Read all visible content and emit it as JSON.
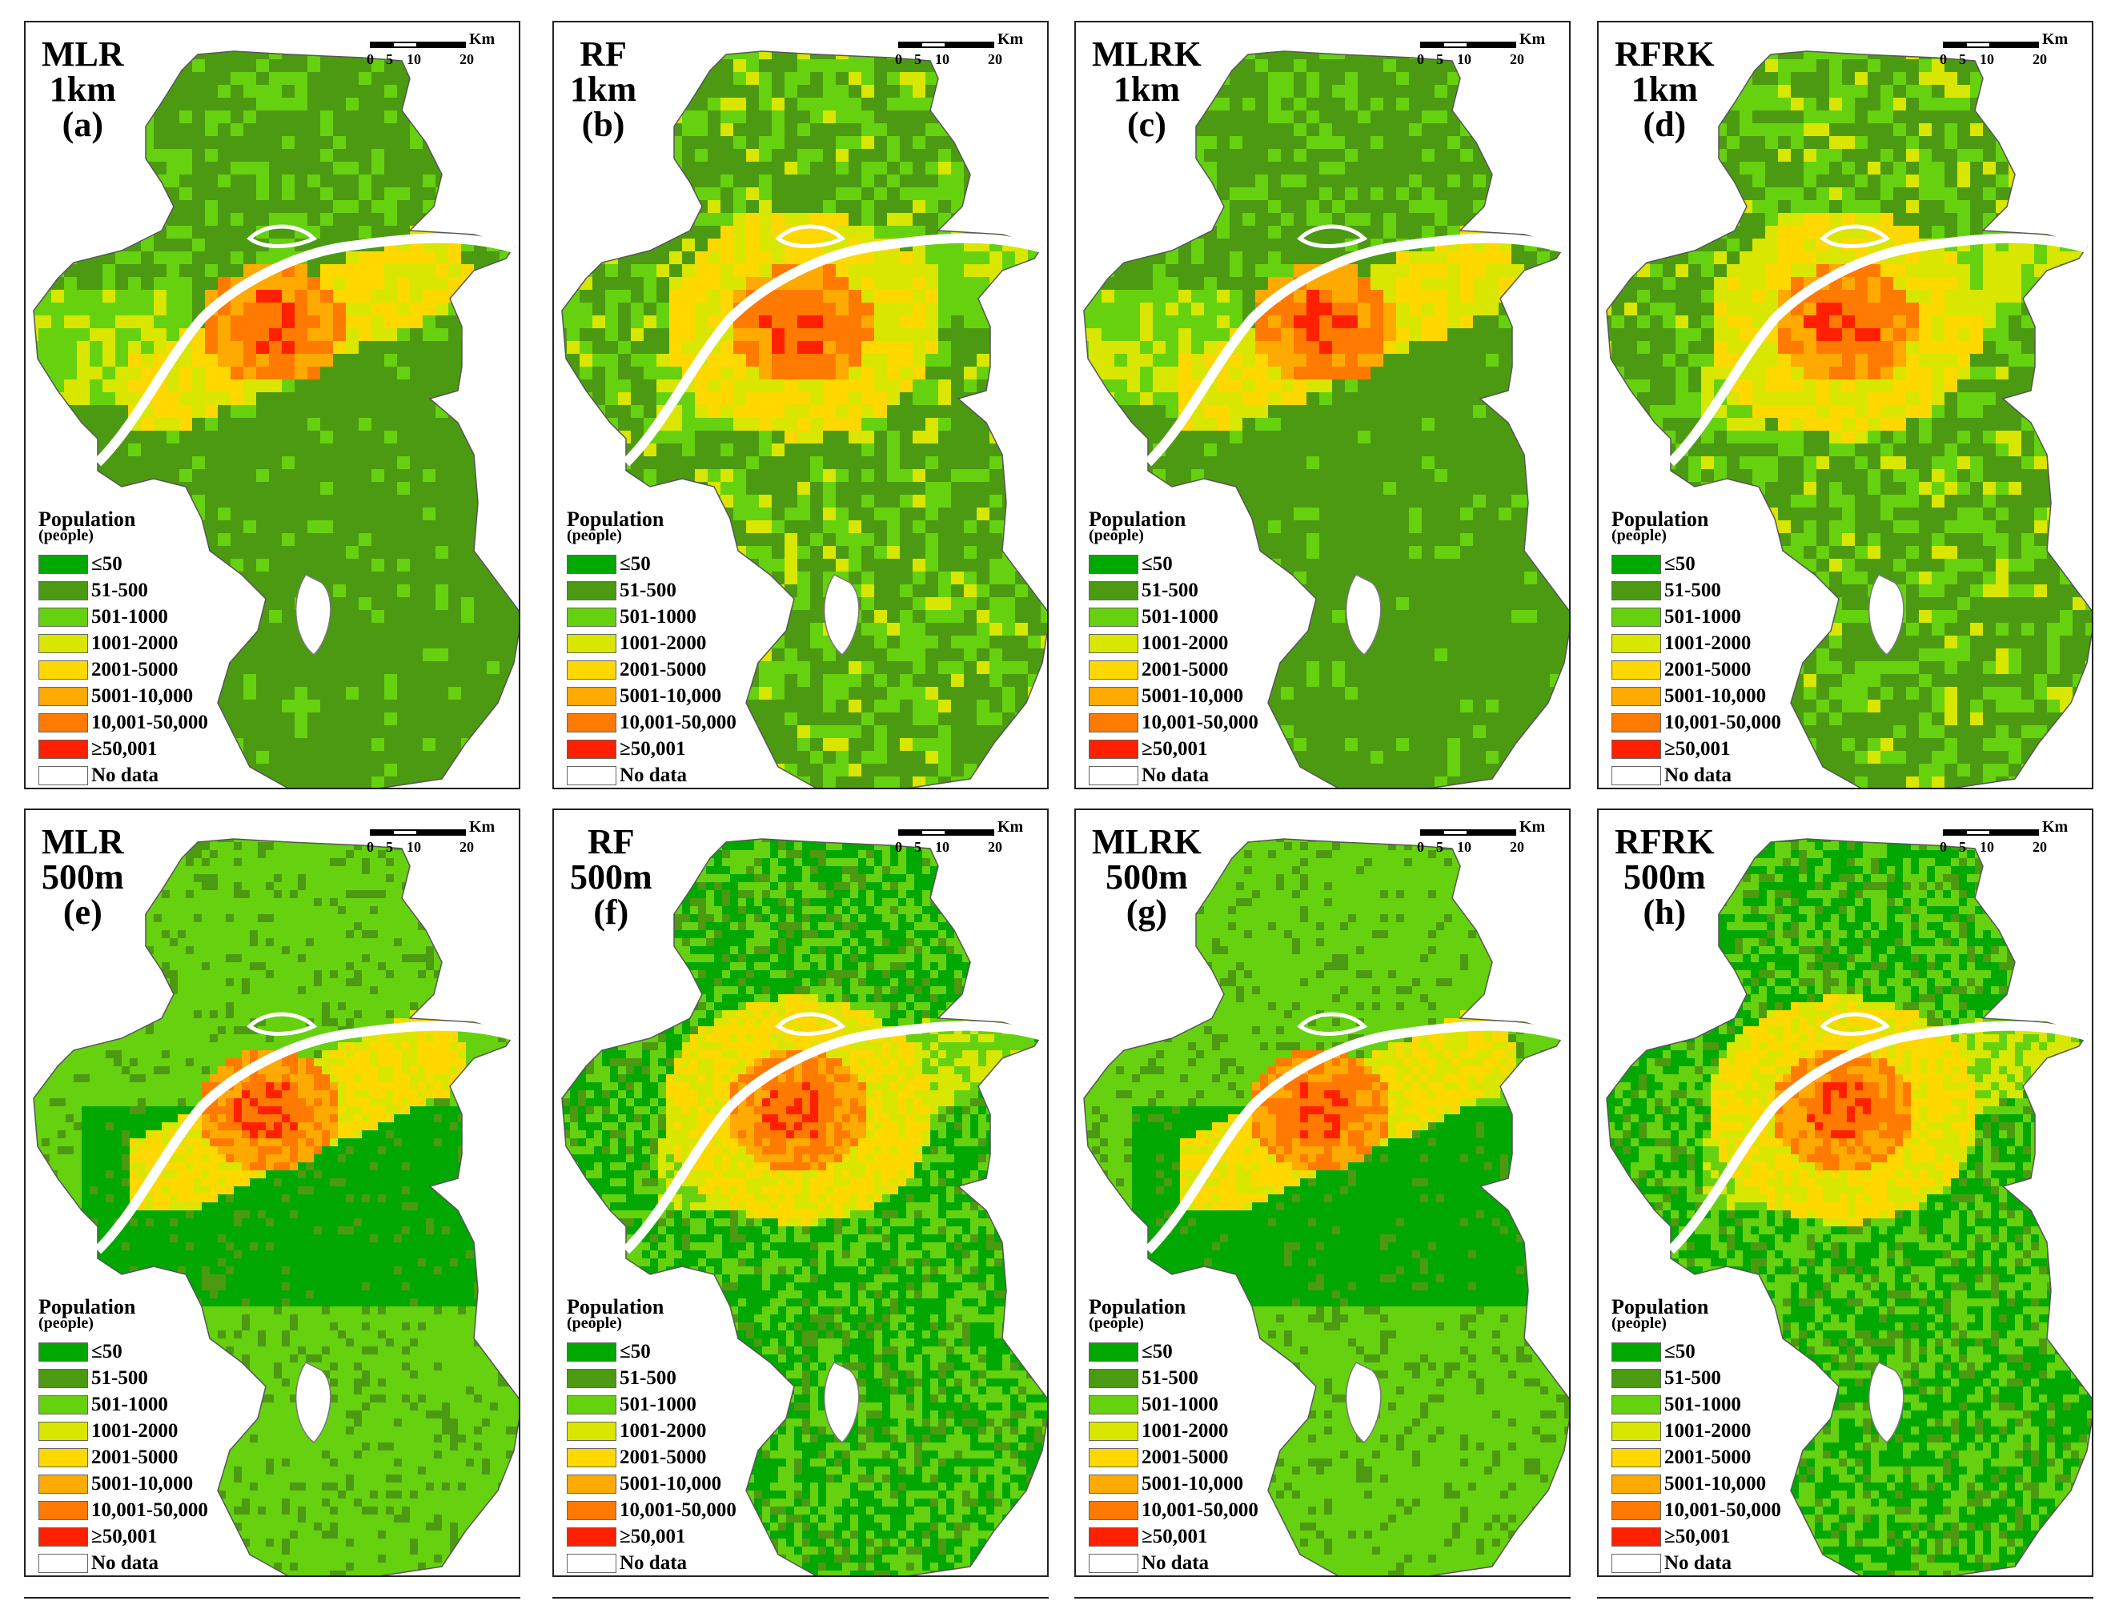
{
  "panels": [
    {
      "method": "MLR",
      "resolution": "1km",
      "letter": "(a)",
      "scheme": "a"
    },
    {
      "method": "RF",
      "resolution": "1km",
      "letter": "(b)",
      "scheme": "b"
    },
    {
      "method": "MLRK",
      "resolution": "1km",
      "letter": "(c)",
      "scheme": "a"
    },
    {
      "method": "RFRK",
      "resolution": "1km",
      "letter": "(d)",
      "scheme": "b"
    },
    {
      "method": "MLR",
      "resolution": "500m",
      "letter": "(e)",
      "scheme": "c"
    },
    {
      "method": "RF",
      "resolution": "500m",
      "letter": "(f)",
      "scheme": "d"
    },
    {
      "method": "MLRK",
      "resolution": "500m",
      "letter": "(g)",
      "scheme": "c"
    },
    {
      "method": "RFRK",
      "resolution": "500m",
      "letter": "(h)",
      "scheme": "d"
    }
  ],
  "scale_bar": {
    "unit": "Km",
    "ticks": [
      "0",
      "5",
      "10",
      "20"
    ]
  },
  "legend": {
    "title": "Population",
    "subtitle": "(people)",
    "classes": [
      {
        "label": "≤50",
        "color": "#00a800"
      },
      {
        "label": "51-500",
        "color": "#4c9a12"
      },
      {
        "label": "501-1000",
        "color": "#66d10f"
      },
      {
        "label": "1001-2000",
        "color": "#d8e600"
      },
      {
        "label": "2001-5000",
        "color": "#ffd800"
      },
      {
        "label": "5001-10,000",
        "color": "#ffaa00"
      },
      {
        "label": "10,001-50,000",
        "color": "#ff7a00"
      },
      {
        "label": "≥50,001",
        "color": "#ff2000"
      },
      {
        "label": "No data",
        "color": "#ffffff"
      }
    ]
  }
}
